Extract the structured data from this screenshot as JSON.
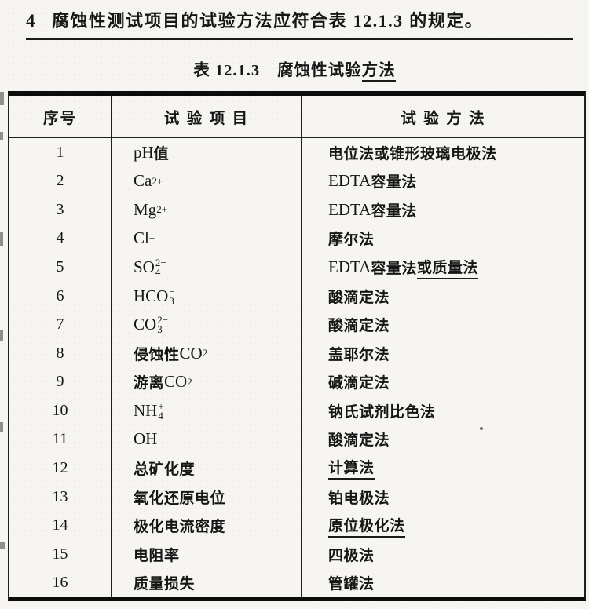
{
  "heading": {
    "number": "4",
    "text": "腐蚀性测试项目的试验方法应符合表 ",
    "ref": "12.1.3",
    "tail": " 的规定。"
  },
  "table_title": {
    "label": "表",
    "number": "12.1.3",
    "text": "腐蚀性试验",
    "underlined": "方法"
  },
  "table": {
    "headers": [
      "序号",
      "试 验 项 目",
      "试 验 方 法"
    ],
    "rows": [
      {
        "no": "1",
        "item": [
          {
            "t": "pH "
          },
          {
            "t": "值",
            "cn": true
          }
        ],
        "method": [
          {
            "t": "电位法或锥形玻璃电极法",
            "cn": true
          }
        ]
      },
      {
        "no": "2",
        "item": [
          {
            "t": "Ca"
          },
          {
            "sup": "2+"
          }
        ],
        "method": [
          {
            "t": "EDTA "
          },
          {
            "t": "容量法",
            "cn": true
          }
        ]
      },
      {
        "no": "3",
        "item": [
          {
            "t": "Mg"
          },
          {
            "sup": "2+"
          }
        ],
        "method": [
          {
            "t": "EDTA "
          },
          {
            "t": "容量法",
            "cn": true
          }
        ]
      },
      {
        "no": "4",
        "item": [
          {
            "t": "Cl"
          },
          {
            "sup": "−"
          }
        ],
        "method": [
          {
            "t": "摩尔法",
            "cn": true
          }
        ]
      },
      {
        "no": "5",
        "item": [
          {
            "t": "SO"
          },
          {
            "sup": "2−",
            "sub": "4"
          }
        ],
        "method": [
          {
            "t": "EDTA "
          },
          {
            "t": "容量法",
            "cn": true
          },
          {
            "t": "或质量法",
            "cn": true,
            "u": true
          }
        ]
      },
      {
        "no": "6",
        "item": [
          {
            "t": "HCO"
          },
          {
            "sup": "−",
            "sub": "3"
          }
        ],
        "method": [
          {
            "t": "酸滴定法",
            "cn": true
          }
        ]
      },
      {
        "no": "7",
        "item": [
          {
            "t": "CO"
          },
          {
            "sup": "2−",
            "sub": "3"
          }
        ],
        "method": [
          {
            "t": "酸滴定法",
            "cn": true
          }
        ]
      },
      {
        "no": "8",
        "item": [
          {
            "t": "侵蚀性 ",
            "cn": true
          },
          {
            "t": "CO"
          },
          {
            "sub": "2"
          }
        ],
        "method": [
          {
            "t": "盖耶尔法",
            "cn": true
          }
        ]
      },
      {
        "no": "9",
        "item": [
          {
            "t": "游离 ",
            "cn": true
          },
          {
            "t": "CO"
          },
          {
            "sub": "2"
          }
        ],
        "method": [
          {
            "t": "碱滴定法",
            "cn": true
          }
        ]
      },
      {
        "no": "10",
        "item": [
          {
            "t": "NH"
          },
          {
            "sup": "+",
            "sub": "4"
          }
        ],
        "method": [
          {
            "t": "钠氏试剂比色法",
            "cn": true
          }
        ]
      },
      {
        "no": "11",
        "item": [
          {
            "t": "OH"
          },
          {
            "sup": "−"
          }
        ],
        "method": [
          {
            "t": "酸滴定法",
            "cn": true
          }
        ]
      },
      {
        "no": "12",
        "item": [
          {
            "t": "总矿化度",
            "cn": true
          }
        ],
        "method": [
          {
            "t": "计算法",
            "cn": true,
            "u": true
          }
        ]
      },
      {
        "no": "13",
        "item": [
          {
            "t": "氧化还原电位",
            "cn": true
          }
        ],
        "method": [
          {
            "t": "铂电极法",
            "cn": true
          }
        ]
      },
      {
        "no": "14",
        "item": [
          {
            "t": "极化电流密度",
            "cn": true
          }
        ],
        "method": [
          {
            "t": "原位极化法",
            "cn": true,
            "u": true
          }
        ]
      },
      {
        "no": "15",
        "item": [
          {
            "t": "电阻率",
            "cn": true
          }
        ],
        "method": [
          {
            "t": "四极法",
            "cn": true
          }
        ]
      },
      {
        "no": "16",
        "item": [
          {
            "t": "质量损失",
            "cn": true
          }
        ],
        "method": [
          {
            "t": "管罐法",
            "cn": true
          }
        ]
      }
    ]
  },
  "colors": {
    "ink": "#161616",
    "paper": "#f6f5f1",
    "border": "#1f1f1f"
  }
}
